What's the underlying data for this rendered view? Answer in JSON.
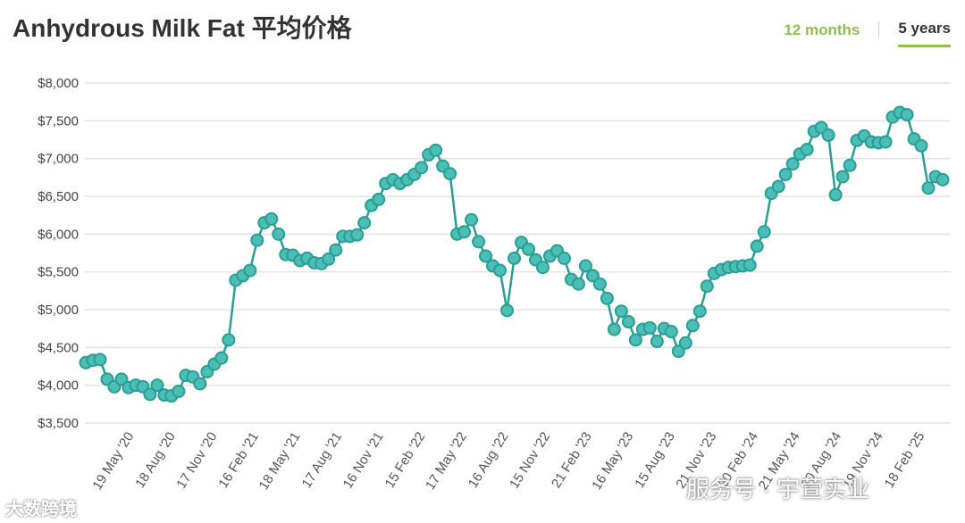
{
  "header": {
    "title": "Anhydrous Milk Fat 平均价格",
    "tabs": [
      {
        "label": "12 months",
        "active": false
      },
      {
        "label": "5 years",
        "active": true
      }
    ]
  },
  "watermarks": {
    "left": "大数跨境",
    "right": "服务号 · 宇萱实业"
  },
  "colors": {
    "line": "#2a9d94",
    "marker_fill": "#4bbfb6",
    "accent": "#8fc04d",
    "grid": "#e3e3e3"
  },
  "chart_data": {
    "type": "line",
    "title": "Anhydrous Milk Fat 平均价格",
    "xlabel": "",
    "ylabel": "",
    "ylim": [
      3500,
      8000
    ],
    "yticks": [
      3500,
      4000,
      4500,
      5000,
      5500,
      6000,
      6500,
      7000,
      7500,
      8000
    ],
    "ytick_labels": [
      "$3,500",
      "$4,000",
      "$4,500",
      "$5,000",
      "$5,500",
      "$6,000",
      "$6,500",
      "$7,000",
      "$7,500",
      "$8,000"
    ],
    "xtick_labels": [
      "19 May '20",
      "18 Aug '20",
      "17 Nov '20",
      "16 Feb '21",
      "18 May '21",
      "17 Aug '21",
      "16 Nov '21",
      "15 Feb '22",
      "17 May '22",
      "16 Aug '22",
      "15 Nov '22",
      "21 Feb '23",
      "16 May '23",
      "15 Aug '23",
      "21 Nov '23",
      "20 Feb '24",
      "21 May '24",
      "20 Aug '24",
      "19 Nov '24",
      "18 Feb '25"
    ],
    "grid": true,
    "legend": "none",
    "series": [
      {
        "values": [
          4300,
          4330,
          4340,
          4080,
          3980,
          4080,
          3970,
          4000,
          3980,
          3880,
          4000,
          3870,
          3860,
          3920,
          4130,
          4110,
          4020,
          4180,
          4280,
          4360,
          4600,
          5390,
          5450,
          5520,
          5920,
          6150,
          6200,
          6000,
          5730,
          5720,
          5650,
          5680,
          5620,
          5610,
          5670,
          5790,
          5970,
          5970,
          5990,
          6150,
          6380,
          6460,
          6670,
          6720,
          6670,
          6720,
          6790,
          6880,
          7050,
          7110,
          6900,
          6800,
          6000,
          6030,
          6190,
          5900,
          5710,
          5580,
          5520,
          4990,
          5680,
          5890,
          5800,
          5660,
          5560,
          5710,
          5780,
          5680,
          5400,
          5340,
          5580,
          5450,
          5340,
          5150,
          4740,
          4980,
          4840,
          4600,
          4740,
          4760,
          4580,
          4750,
          4710,
          4450,
          4560,
          4790,
          4980,
          5310,
          5480,
          5530,
          5560,
          5570,
          5580,
          5590,
          5840,
          6030,
          6540,
          6630,
          6790,
          6930,
          7060,
          7120,
          7360,
          7410,
          7310,
          6520,
          6760,
          6910,
          7240,
          7300,
          7220,
          7210,
          7220,
          7550,
          7610,
          7580,
          7260,
          7170,
          6610,
          6760,
          6720
        ]
      }
    ]
  }
}
